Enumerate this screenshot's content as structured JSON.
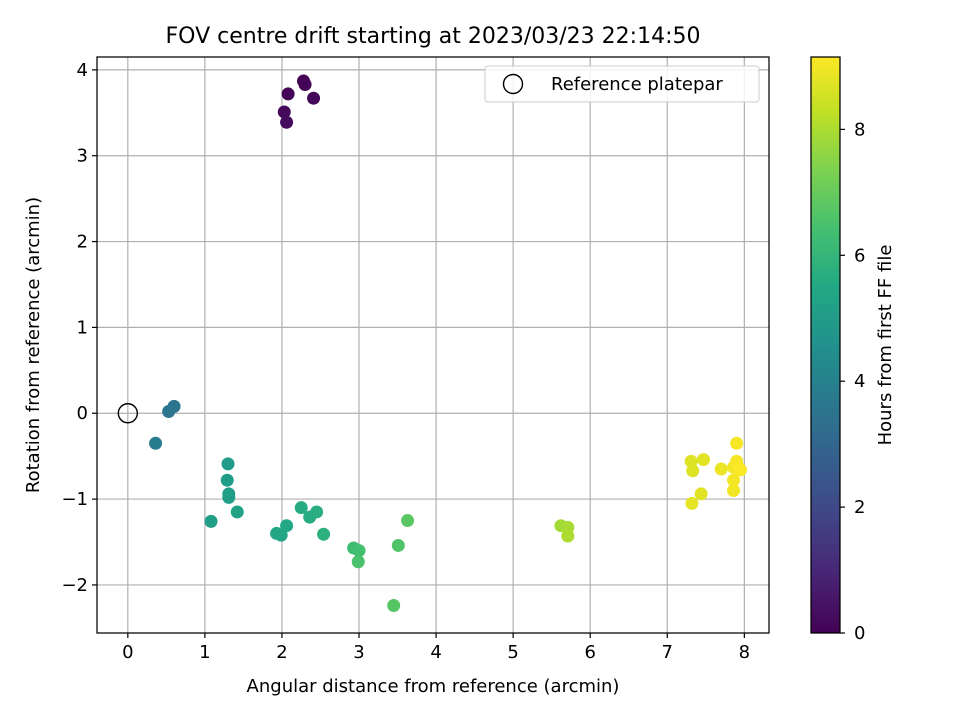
{
  "chart_data": {
    "type": "scatter",
    "title": "FOV centre drift starting at 2023/03/23 22:14:50",
    "xlabel": "Angular distance from reference (arcmin)",
    "ylabel": "Rotation from reference (arcmin)",
    "xlim": [
      -0.4,
      8.32
    ],
    "ylim": [
      -2.56,
      4.15
    ],
    "xticks": [
      0,
      1,
      2,
      3,
      4,
      5,
      6,
      7,
      8
    ],
    "yticks": [
      -2,
      -1,
      0,
      1,
      2,
      3,
      4
    ],
    "grid": true,
    "legend": {
      "position": "top-right",
      "entries": [
        "Reference platepar"
      ]
    },
    "reference_point": {
      "label": "Reference platepar",
      "x": 0,
      "y": 0
    },
    "colorbar": {
      "label": "Hours from first FF file",
      "colormap": "viridis",
      "range": [
        0,
        9.15
      ],
      "ticks": [
        0,
        2,
        4,
        6,
        8
      ]
    },
    "points": [
      {
        "x": 2.28,
        "y": 3.87,
        "hours": 0.0
      },
      {
        "x": 2.3,
        "y": 3.83,
        "hours": 0.05
      },
      {
        "x": 2.08,
        "y": 3.72,
        "hours": 0.1
      },
      {
        "x": 2.41,
        "y": 3.67,
        "hours": 0.15
      },
      {
        "x": 2.03,
        "y": 3.51,
        "hours": 0.2
      },
      {
        "x": 2.06,
        "y": 3.39,
        "hours": 0.25
      },
      {
        "x": 0.6,
        "y": 0.08,
        "hours": 3.5
      },
      {
        "x": 0.53,
        "y": 0.02,
        "hours": 3.6
      },
      {
        "x": 0.36,
        "y": -0.35,
        "hours": 3.8
      },
      {
        "x": 1.3,
        "y": -0.59,
        "hours": 5.0
      },
      {
        "x": 1.29,
        "y": -0.78,
        "hours": 5.0
      },
      {
        "x": 1.31,
        "y": -0.94,
        "hours": 5.1
      },
      {
        "x": 1.31,
        "y": -0.98,
        "hours": 5.1
      },
      {
        "x": 1.42,
        "y": -1.15,
        "hours": 5.2
      },
      {
        "x": 1.08,
        "y": -1.26,
        "hours": 5.1
      },
      {
        "x": 1.93,
        "y": -1.4,
        "hours": 5.4
      },
      {
        "x": 1.99,
        "y": -1.42,
        "hours": 5.4
      },
      {
        "x": 2.06,
        "y": -1.31,
        "hours": 5.5
      },
      {
        "x": 2.25,
        "y": -1.1,
        "hours": 5.6
      },
      {
        "x": 2.36,
        "y": -1.21,
        "hours": 5.6
      },
      {
        "x": 2.45,
        "y": -1.15,
        "hours": 5.7
      },
      {
        "x": 2.54,
        "y": -1.41,
        "hours": 5.8
      },
      {
        "x": 2.93,
        "y": -1.57,
        "hours": 6.3
      },
      {
        "x": 3.0,
        "y": -1.6,
        "hours": 6.4
      },
      {
        "x": 2.99,
        "y": -1.73,
        "hours": 6.5
      },
      {
        "x": 3.51,
        "y": -1.54,
        "hours": 6.6
      },
      {
        "x": 3.63,
        "y": -1.25,
        "hours": 6.8
      },
      {
        "x": 3.45,
        "y": -2.24,
        "hours": 6.7
      },
      {
        "x": 5.62,
        "y": -1.31,
        "hours": 7.9
      },
      {
        "x": 5.71,
        "y": -1.33,
        "hours": 7.95
      },
      {
        "x": 5.71,
        "y": -1.43,
        "hours": 8.0
      },
      {
        "x": 7.31,
        "y": -0.56,
        "hours": 8.7
      },
      {
        "x": 7.33,
        "y": -0.67,
        "hours": 8.7
      },
      {
        "x": 7.47,
        "y": -0.54,
        "hours": 8.75
      },
      {
        "x": 7.44,
        "y": -0.94,
        "hours": 8.75
      },
      {
        "x": 7.32,
        "y": -1.05,
        "hours": 8.8
      },
      {
        "x": 7.7,
        "y": -0.65,
        "hours": 8.9
      },
      {
        "x": 7.86,
        "y": -0.63,
        "hours": 9.0
      },
      {
        "x": 7.86,
        "y": -0.78,
        "hours": 9.0
      },
      {
        "x": 7.86,
        "y": -0.9,
        "hours": 9.0
      },
      {
        "x": 7.9,
        "y": -0.35,
        "hours": 9.05
      },
      {
        "x": 7.9,
        "y": -0.56,
        "hours": 9.05
      },
      {
        "x": 7.93,
        "y": -0.64,
        "hours": 9.1
      },
      {
        "x": 7.95,
        "y": -0.66,
        "hours": 9.1
      }
    ]
  }
}
